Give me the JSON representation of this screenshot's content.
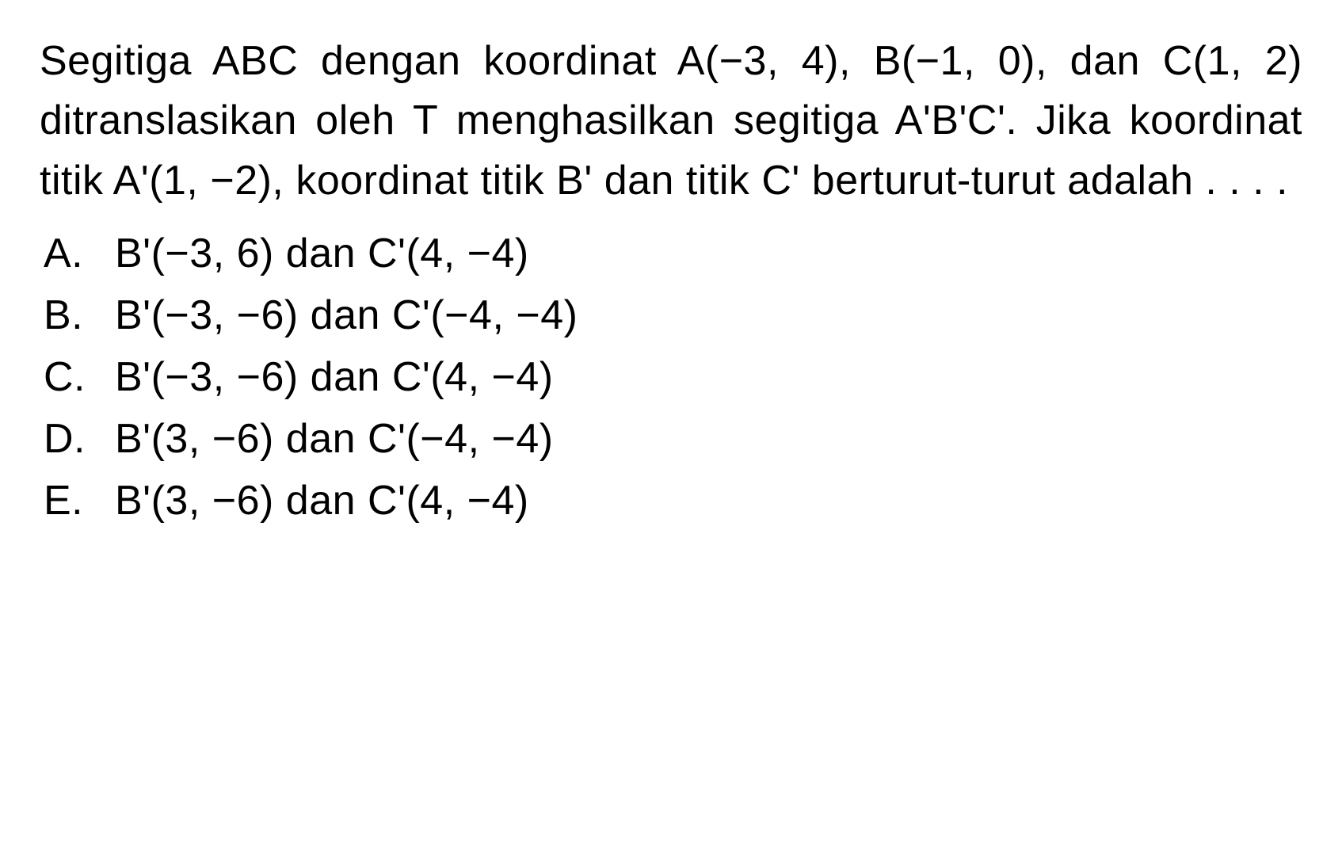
{
  "question": {
    "text": "Segitiga ABC dengan koordinat A(−3, 4), B(−1, 0), dan C(1, 2) ditranslasikan oleh T menghasilkan segitiga A'B'C'. Jika koordinat titik A'(1, −2), koordinat titik B' dan titik C' ber­turut-turut adalah . . . ."
  },
  "options": [
    {
      "letter": "A.",
      "text": "B'(−3, 6) dan C'(4, −4)"
    },
    {
      "letter": "B.",
      "text": "B'(−3, −6) dan C'(−4, −4)"
    },
    {
      "letter": "C.",
      "text": "B'(−3, −6) dan C'(4, −4)"
    },
    {
      "letter": "D.",
      "text": "B'(3, −6) dan C'(−4, −4)"
    },
    {
      "letter": "E.",
      "text": "B'(3, −6) dan C'(4, −4)"
    }
  ],
  "styling": {
    "background_color": "#ffffff",
    "text_color": "#000000",
    "font_size": 52,
    "font_weight": 500,
    "line_height": 1.45
  }
}
